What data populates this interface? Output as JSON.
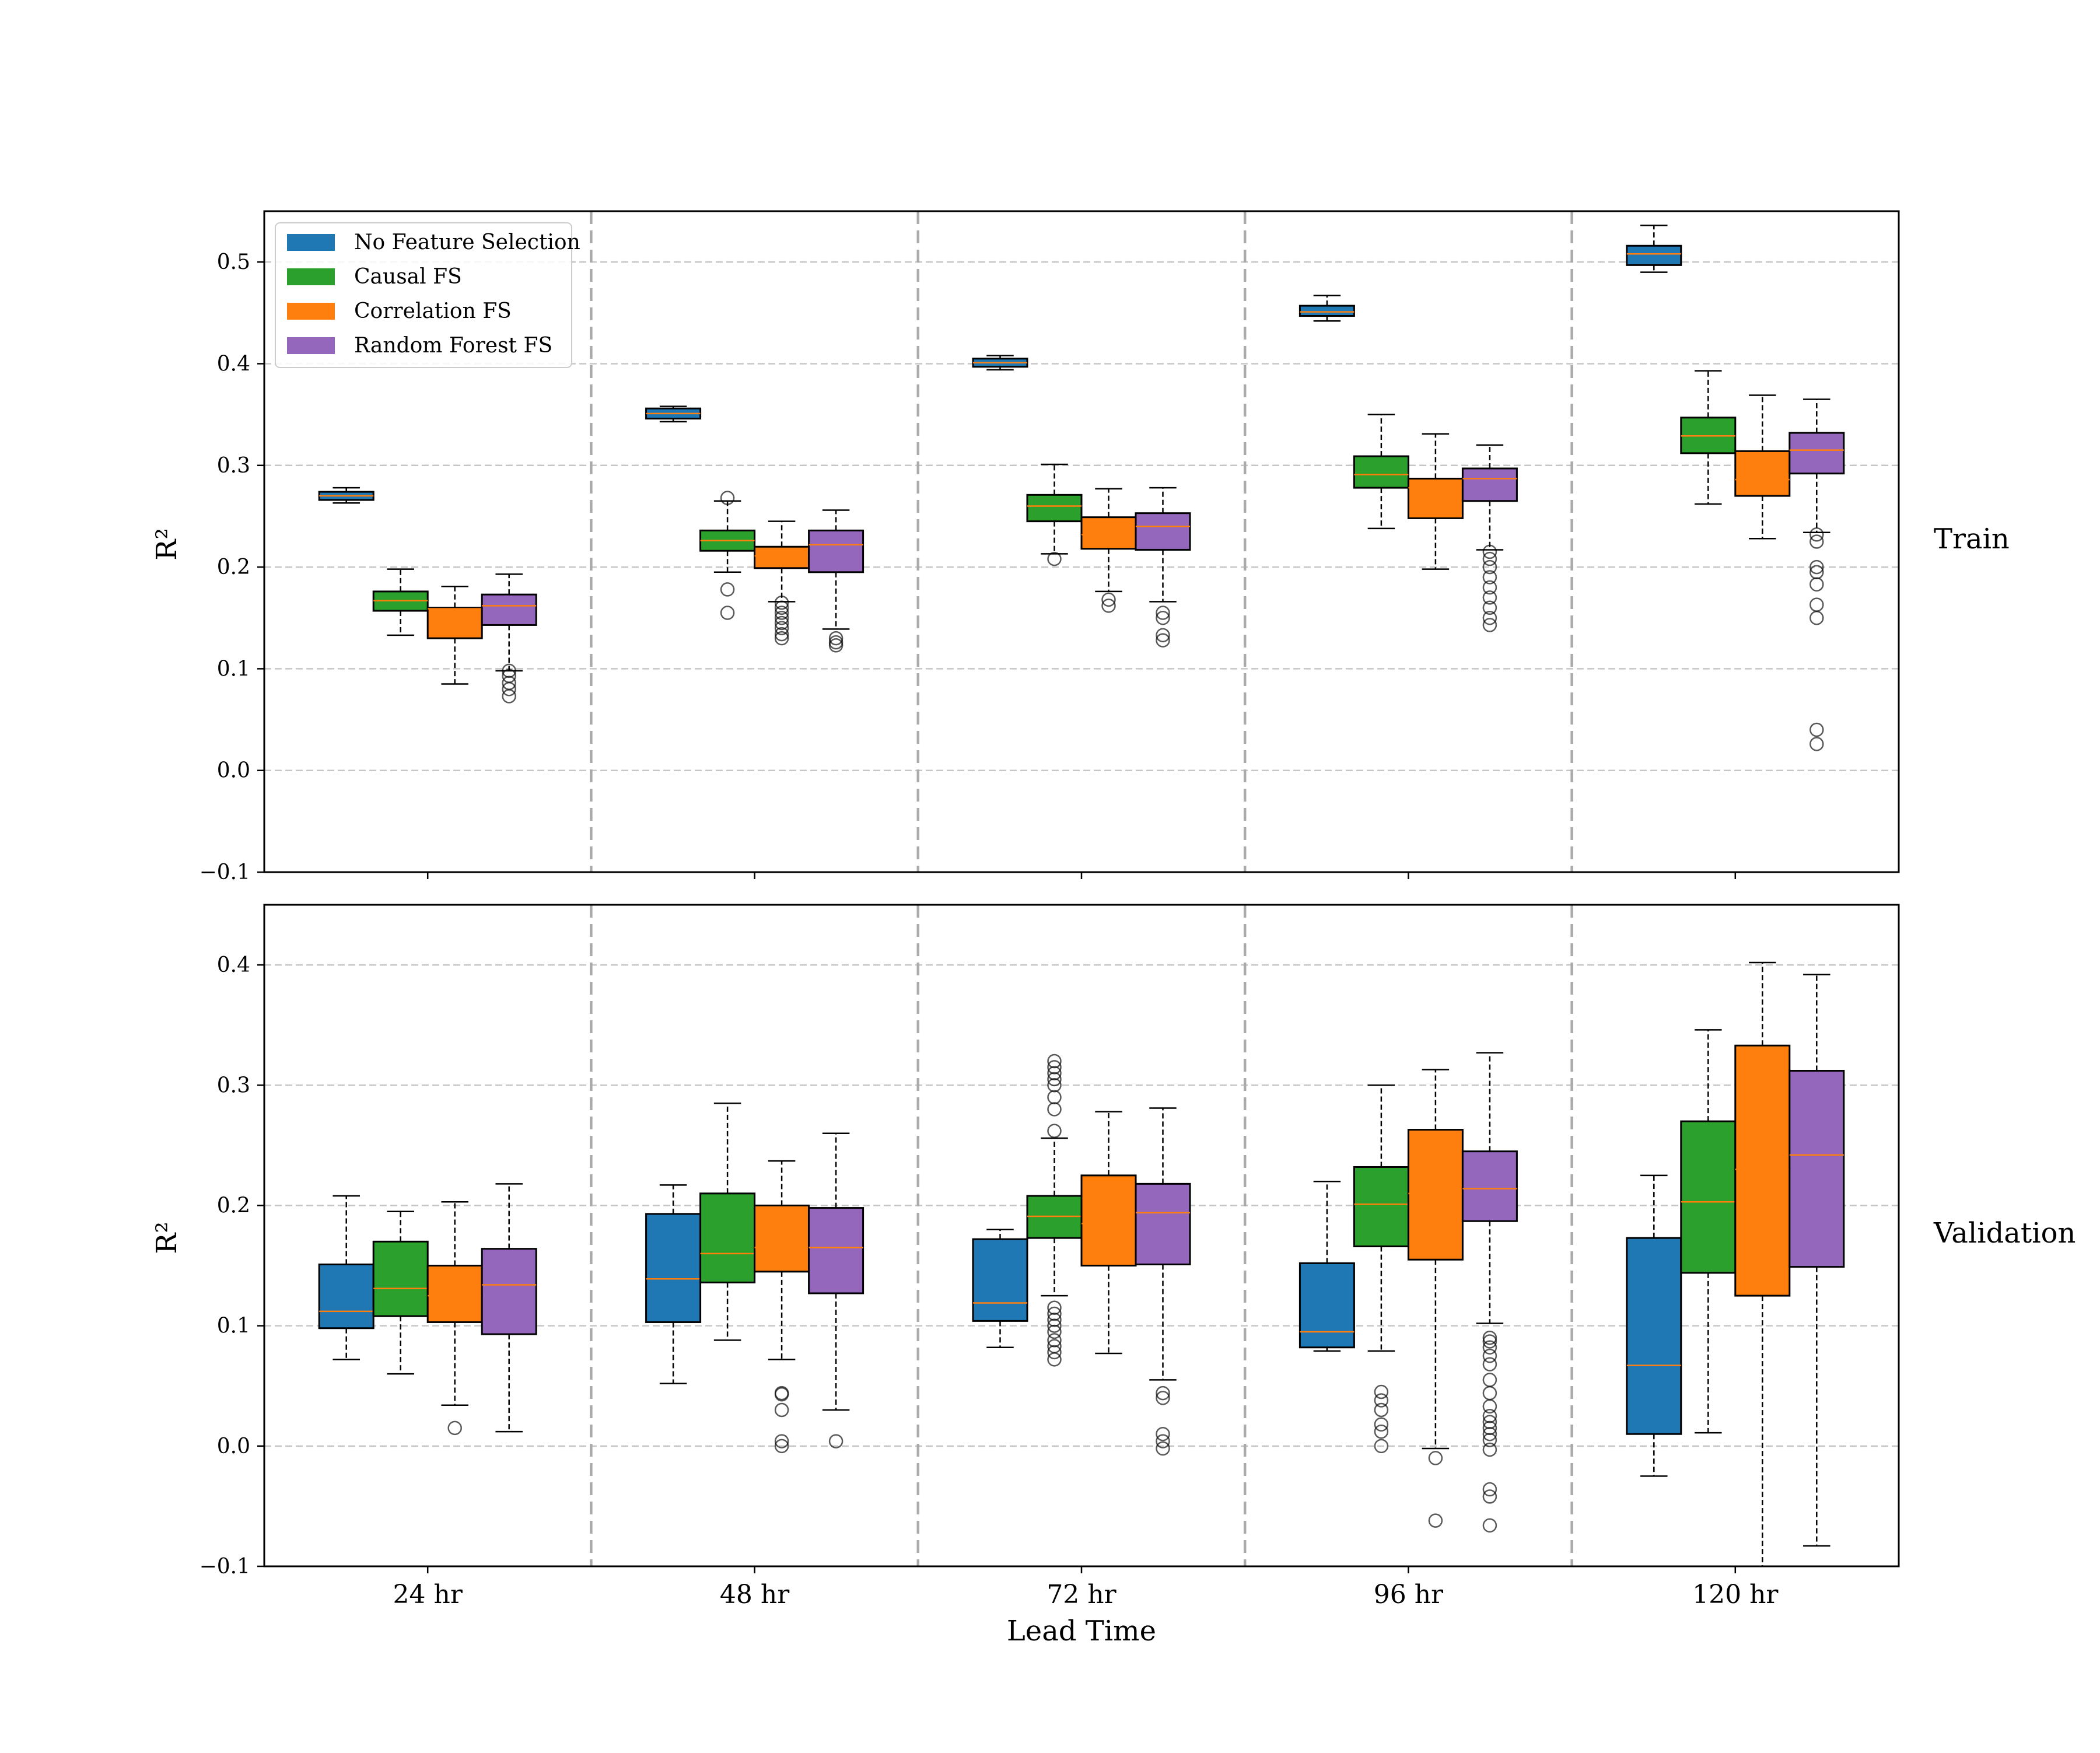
{
  "chart_data": {
    "type": "box",
    "categories": [
      "24 hr",
      "48 hr",
      "72 hr",
      "96 hr",
      "120 hr"
    ],
    "xlabel": "Lead Time",
    "grid": true,
    "legend": {
      "placement": "top-left",
      "entries": [
        {
          "name": "No Feature Selection",
          "color": "#1f77b4"
        },
        {
          "name": "Causal FS",
          "color": "#2ca02c"
        },
        {
          "name": "Correlation FS",
          "color": "#ff7f0e"
        },
        {
          "name": "Random Forest FS",
          "color": "#9467bd"
        }
      ]
    },
    "median_color": "#ff7f0e",
    "panels": [
      {
        "name": "Train",
        "ylabel": "R²",
        "ylim": [
          -0.1,
          0.55
        ],
        "yticks": [
          -0.1,
          0.0,
          0.1,
          0.2,
          0.3,
          0.4,
          0.5
        ],
        "ytick_labels": [
          "−0.1",
          "0.0",
          "0.1",
          "0.2",
          "0.3",
          "0.4",
          "0.5"
        ],
        "series": [
          {
            "name": "No Feature Selection",
            "boxes": [
              {
                "whislo": 0.263,
                "q1": 0.266,
                "med": 0.27,
                "q3": 0.274,
                "whishi": 0.278,
                "fliers": []
              },
              {
                "whislo": 0.343,
                "q1": 0.346,
                "med": 0.351,
                "q3": 0.356,
                "whishi": 0.358,
                "fliers": []
              },
              {
                "whislo": 0.394,
                "q1": 0.397,
                "med": 0.401,
                "q3": 0.405,
                "whishi": 0.408,
                "fliers": []
              },
              {
                "whislo": 0.442,
                "q1": 0.447,
                "med": 0.451,
                "q3": 0.457,
                "whishi": 0.467,
                "fliers": []
              },
              {
                "whislo": 0.49,
                "q1": 0.497,
                "med": 0.508,
                "q3": 0.516,
                "whishi": 0.536,
                "fliers": []
              }
            ]
          },
          {
            "name": "Causal FS",
            "boxes": [
              {
                "whislo": 0.133,
                "q1": 0.157,
                "med": 0.167,
                "q3": 0.176,
                "whishi": 0.198,
                "fliers": []
              },
              {
                "whislo": 0.195,
                "q1": 0.216,
                "med": 0.226,
                "q3": 0.236,
                "whishi": 0.265,
                "fliers": [
                  0.155,
                  0.178,
                  0.268
                ]
              },
              {
                "whislo": 0.213,
                "q1": 0.245,
                "med": 0.26,
                "q3": 0.271,
                "whishi": 0.301,
                "fliers": [
                  0.208
                ]
              },
              {
                "whislo": 0.238,
                "q1": 0.278,
                "med": 0.291,
                "q3": 0.309,
                "whishi": 0.35,
                "fliers": []
              },
              {
                "whislo": 0.262,
                "q1": 0.312,
                "med": 0.329,
                "q3": 0.347,
                "whishi": 0.393,
                "fliers": []
              }
            ]
          },
          {
            "name": "Correlation FS",
            "boxes": [
              {
                "whislo": 0.085,
                "q1": 0.13,
                "med": 0.159,
                "q3": 0.16,
                "whishi": 0.181,
                "fliers": []
              },
              {
                "whislo": 0.166,
                "q1": 0.199,
                "med": 0.211,
                "q3": 0.22,
                "whishi": 0.245,
                "fliers": [
                  0.13,
                  0.134,
                  0.14,
                  0.145,
                  0.15,
                  0.155,
                  0.16,
                  0.165
                ]
              },
              {
                "whislo": 0.176,
                "q1": 0.218,
                "med": 0.232,
                "q3": 0.249,
                "whishi": 0.277,
                "fliers": [
                  0.162,
                  0.168
                ]
              },
              {
                "whislo": 0.198,
                "q1": 0.248,
                "med": 0.278,
                "q3": 0.287,
                "whishi": 0.331,
                "fliers": []
              },
              {
                "whislo": 0.228,
                "q1": 0.27,
                "med": 0.286,
                "q3": 0.314,
                "whishi": 0.369,
                "fliers": []
              }
            ]
          },
          {
            "name": "Random Forest FS",
            "boxes": [
              {
                "whislo": 0.098,
                "q1": 0.143,
                "med": 0.162,
                "q3": 0.173,
                "whishi": 0.193,
                "fliers": [
                  0.073,
                  0.08,
                  0.086,
                  0.093,
                  0.098
                ]
              },
              {
                "whislo": 0.139,
                "q1": 0.195,
                "med": 0.222,
                "q3": 0.236,
                "whishi": 0.256,
                "fliers": [
                  0.123,
                  0.126,
                  0.13
                ]
              },
              {
                "whislo": 0.166,
                "q1": 0.217,
                "med": 0.24,
                "q3": 0.253,
                "whishi": 0.278,
                "fliers": [
                  0.128,
                  0.133,
                  0.15,
                  0.155
                ]
              },
              {
                "whislo": 0.217,
                "q1": 0.265,
                "med": 0.287,
                "q3": 0.297,
                "whishi": 0.32,
                "fliers": [
                  0.143,
                  0.15,
                  0.16,
                  0.17,
                  0.18,
                  0.19,
                  0.2,
                  0.208,
                  0.215
                ]
              },
              {
                "whislo": 0.234,
                "q1": 0.292,
                "med": 0.315,
                "q3": 0.332,
                "whishi": 0.365,
                "fliers": [
                  0.026,
                  0.04,
                  0.15,
                  0.163,
                  0.183,
                  0.195,
                  0.2,
                  0.225,
                  0.232
                ]
              }
            ]
          }
        ]
      },
      {
        "name": "Validation",
        "ylabel": "R²",
        "ylim": [
          -0.1,
          0.45
        ],
        "yticks": [
          -0.1,
          0.0,
          0.1,
          0.2,
          0.3,
          0.4
        ],
        "ytick_labels": [
          "−0.1",
          "0.0",
          "0.1",
          "0.2",
          "0.3",
          "0.4"
        ],
        "series": [
          {
            "name": "No Feature Selection",
            "boxes": [
              {
                "whislo": 0.072,
                "q1": 0.098,
                "med": 0.112,
                "q3": 0.151,
                "whishi": 0.208,
                "fliers": []
              },
              {
                "whislo": 0.052,
                "q1": 0.103,
                "med": 0.139,
                "q3": 0.193,
                "whishi": 0.217,
                "fliers": []
              },
              {
                "whislo": 0.082,
                "q1": 0.104,
                "med": 0.119,
                "q3": 0.172,
                "whishi": 0.18,
                "fliers": []
              },
              {
                "whislo": 0.079,
                "q1": 0.082,
                "med": 0.095,
                "q3": 0.152,
                "whishi": 0.22,
                "fliers": []
              },
              {
                "whislo": -0.025,
                "q1": 0.01,
                "med": 0.067,
                "q3": 0.173,
                "whishi": 0.225,
                "fliers": []
              }
            ]
          },
          {
            "name": "Causal FS",
            "boxes": [
              {
                "whislo": 0.06,
                "q1": 0.108,
                "med": 0.131,
                "q3": 0.17,
                "whishi": 0.195,
                "fliers": []
              },
              {
                "whislo": 0.088,
                "q1": 0.136,
                "med": 0.16,
                "q3": 0.21,
                "whishi": 0.285,
                "fliers": []
              },
              {
                "whislo": 0.125,
                "q1": 0.173,
                "med": 0.191,
                "q3": 0.208,
                "whishi": 0.256,
                "fliers": [
                  0.072,
                  0.078,
                  0.083,
                  0.088,
                  0.095,
                  0.1,
                  0.105,
                  0.11,
                  0.115,
                  0.262,
                  0.28,
                  0.29,
                  0.3,
                  0.305,
                  0.31,
                  0.315,
                  0.32
                ]
              },
              {
                "whislo": 0.079,
                "q1": 0.166,
                "med": 0.201,
                "q3": 0.232,
                "whishi": 0.3,
                "fliers": [
                  0.0,
                  0.012,
                  0.018,
                  0.03,
                  0.038,
                  0.045
                ]
              },
              {
                "whislo": 0.011,
                "q1": 0.144,
                "med": 0.203,
                "q3": 0.27,
                "whishi": 0.346,
                "fliers": []
              }
            ]
          },
          {
            "name": "Correlation FS",
            "boxes": [
              {
                "whislo": 0.034,
                "q1": 0.103,
                "med": 0.125,
                "q3": 0.15,
                "whishi": 0.203,
                "fliers": [
                  0.015
                ]
              },
              {
                "whislo": 0.072,
                "q1": 0.145,
                "med": 0.165,
                "q3": 0.2,
                "whishi": 0.237,
                "fliers": [
                  0.0,
                  0.004,
                  0.03,
                  0.043,
                  0.044
                ]
              },
              {
                "whislo": 0.077,
                "q1": 0.15,
                "med": 0.185,
                "q3": 0.225,
                "whishi": 0.278,
                "fliers": []
              },
              {
                "whislo": -0.002,
                "q1": 0.155,
                "med": 0.21,
                "q3": 0.263,
                "whishi": 0.313,
                "fliers": [
                  -0.01,
                  -0.062
                ]
              },
              {
                "whislo": -0.1,
                "q1": 0.125,
                "med": 0.23,
                "q3": 0.333,
                "whishi": 0.402,
                "fliers": []
              }
            ]
          },
          {
            "name": "Random Forest FS",
            "boxes": [
              {
                "whislo": 0.012,
                "q1": 0.093,
                "med": 0.134,
                "q3": 0.164,
                "whishi": 0.218,
                "fliers": []
              },
              {
                "whislo": 0.03,
                "q1": 0.127,
                "med": 0.165,
                "q3": 0.198,
                "whishi": 0.26,
                "fliers": [
                  0.004
                ]
              },
              {
                "whislo": 0.055,
                "q1": 0.151,
                "med": 0.194,
                "q3": 0.218,
                "whishi": 0.281,
                "fliers": [
                  -0.002,
                  0.004,
                  0.01,
                  0.04,
                  0.044
                ]
              },
              {
                "whislo": 0.102,
                "q1": 0.187,
                "med": 0.214,
                "q3": 0.245,
                "whishi": 0.327,
                "fliers": [
                  -0.066,
                  -0.042,
                  -0.036,
                  -0.003,
                  0.005,
                  0.01,
                  0.015,
                  0.02,
                  0.025,
                  0.033,
                  0.044,
                  0.055,
                  0.068,
                  0.075,
                  0.082,
                  0.087,
                  0.09
                ]
              },
              {
                "whislo": -0.083,
                "q1": 0.149,
                "med": 0.242,
                "q3": 0.312,
                "whishi": 0.392,
                "fliers": []
              }
            ]
          }
        ]
      }
    ]
  }
}
